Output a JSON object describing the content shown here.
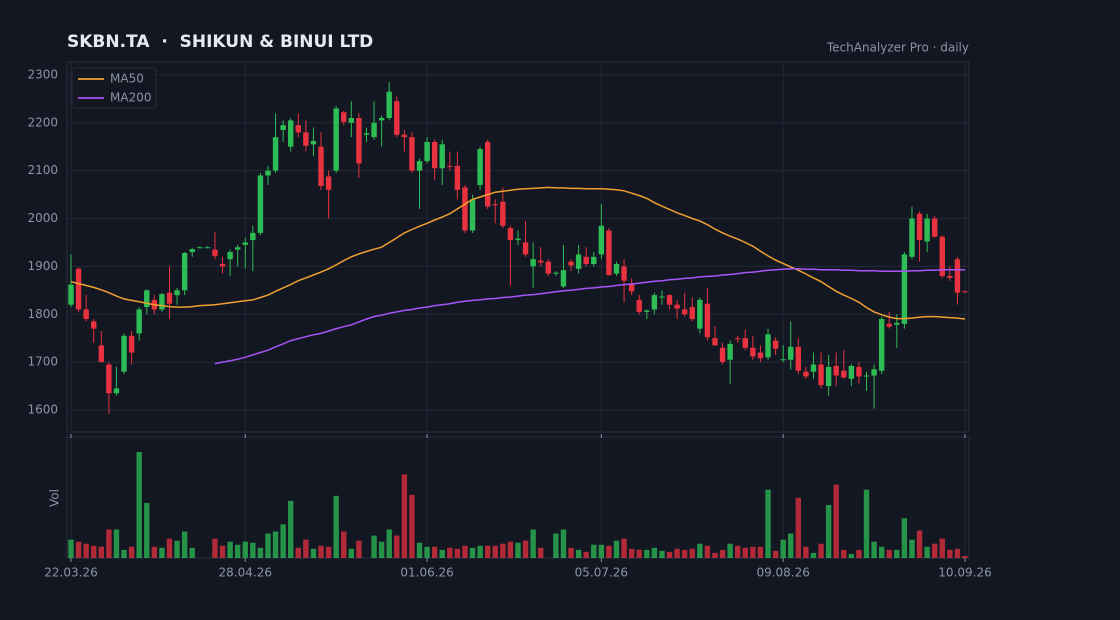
{
  "chart_data": {
    "type": "candlestick",
    "title": "SKBN.TA  ·  SHIKUN & BINUI LTD",
    "subtitle": "TechAnalyzer Pro · daily",
    "volume_label": "Vol",
    "up_color": "#2ebd55",
    "down_color": "#e8323f",
    "legend": "upper left",
    "grid": true,
    "ylim": [
      1554,
      2327
    ],
    "yticks": [
      1600,
      1700,
      1800,
      1900,
      2000,
      2100,
      2200,
      2300
    ],
    "categories": [
      "22.03.26",
      null,
      null,
      null,
      null,
      null,
      null,
      null,
      null,
      null,
      null,
      null,
      null,
      null,
      null,
      null,
      null,
      null,
      null,
      null,
      null,
      null,
      null,
      "28.04.26",
      null,
      null,
      null,
      null,
      null,
      null,
      null,
      null,
      null,
      null,
      null,
      null,
      null,
      null,
      null,
      null,
      null,
      null,
      null,
      null,
      null,
      null,
      null,
      "01.06.26",
      null,
      null,
      null,
      null,
      null,
      null,
      null,
      null,
      null,
      null,
      null,
      null,
      null,
      null,
      null,
      null,
      null,
      null,
      null,
      null,
      null,
      null,
      "05.07.26",
      null,
      null,
      null,
      null,
      null,
      null,
      null,
      null,
      null,
      null,
      null,
      null,
      null,
      null,
      null,
      null,
      null,
      null,
      null,
      null,
      null,
      null,
      null,
      "09.08.26",
      null,
      null,
      null,
      null,
      null,
      null,
      null,
      null,
      null,
      null,
      null,
      null,
      null,
      null,
      null,
      null,
      null,
      null,
      null,
      null,
      null,
      null,
      null,
      "10.09.26"
    ],
    "open": [
      1820,
      1895,
      1810,
      1785,
      1735,
      1695,
      1635,
      1680,
      1755,
      1760,
      1815,
      1830,
      1810,
      1845,
      1840,
      1850,
      1930,
      1940,
      1940,
      1935,
      1905,
      1915,
      1935,
      1945,
      1955,
      1970,
      2090,
      2100,
      2185,
      2150,
      2195,
      2180,
      2155,
      2150,
      2088,
      2100,
      2222,
      2200,
      2210,
      2175,
      2170,
      2205,
      2210,
      2245,
      2175,
      2170,
      2100,
      2120,
      2160,
      2105,
      2110,
      2110,
      2065,
      1975,
      2070,
      2160,
      2030,
      2035,
      1980,
      1955,
      1950,
      1900,
      1912,
      1910,
      1885,
      1858,
      1910,
      1895,
      1920,
      1905,
      1925,
      1975,
      1885,
      1900,
      1865,
      1830,
      1805,
      1810,
      1835,
      1840,
      1820,
      1810,
      1815,
      1770,
      1822,
      1750,
      1730,
      1705,
      1750,
      1750,
      1730,
      1720,
      1710,
      1745,
      1705,
      1705,
      1732,
      1680,
      1680,
      1695,
      1650,
      1692,
      1682,
      1665,
      1690,
      1670,
      1672,
      1682,
      1780,
      1778,
      1780,
      1920,
      2010,
      1952,
      2000,
      1962,
      1880,
      1915,
      1848
    ],
    "high": [
      1925,
      1898,
      1840,
      1790,
      1765,
      1700,
      1690,
      1760,
      1765,
      1815,
      1852,
      1840,
      1845,
      1900,
      1855,
      1930,
      1938,
      1942,
      1942,
      1972,
      1920,
      1935,
      1945,
      1960,
      1985,
      2095,
      2110,
      2220,
      2205,
      2210,
      2220,
      2205,
      2190,
      2180,
      2100,
      2235,
      2225,
      2245,
      2220,
      2190,
      2245,
      2215,
      2285,
      2255,
      2185,
      2180,
      2125,
      2170,
      2165,
      2165,
      2140,
      2140,
      2070,
      2050,
      2150,
      2165,
      2040,
      2065,
      1985,
      1975,
      1995,
      1950,
      1940,
      1915,
      1890,
      1945,
      1915,
      1945,
      1940,
      1930,
      2030,
      1980,
      1910,
      1915,
      1875,
      1840,
      1810,
      1845,
      1850,
      1842,
      1830,
      1845,
      1835,
      1835,
      1855,
      1775,
      1740,
      1745,
      1755,
      1768,
      1755,
      1735,
      1770,
      1752,
      1735,
      1785,
      1750,
      1690,
      1720,
      1720,
      1715,
      1720,
      1725,
      1695,
      1700,
      1680,
      1695,
      1795,
      1805,
      1800,
      1930,
      2025,
      2015,
      2010,
      2005,
      1965,
      1900,
      1920,
      1850
    ],
    "low": [
      1815,
      1805,
      1785,
      1740,
      1700,
      1592,
      1630,
      1675,
      1695,
      1745,
      1800,
      1800,
      1805,
      1790,
      1820,
      1840,
      1920,
      1938,
      1938,
      1915,
      1885,
      1880,
      1900,
      1895,
      1890,
      1965,
      2070,
      2095,
      2160,
      2140,
      2170,
      2140,
      2130,
      2060,
      2000,
      2095,
      2195,
      2170,
      2085,
      2160,
      2165,
      2150,
      2205,
      2170,
      2140,
      2095,
      2020,
      2115,
      2080,
      2070,
      2100,
      2040,
      1970,
      1970,
      2060,
      2020,
      1990,
      1980,
      1860,
      1945,
      1920,
      1855,
      1900,
      1880,
      1880,
      1855,
      1890,
      1885,
      1900,
      1900,
      1915,
      1880,
      1880,
      1825,
      1840,
      1800,
      1790,
      1800,
      1820,
      1810,
      1790,
      1795,
      1785,
      1760,
      1745,
      1735,
      1695,
      1655,
      1740,
      1725,
      1705,
      1700,
      1705,
      1715,
      1700,
      1685,
      1675,
      1665,
      1665,
      1645,
      1630,
      1650,
      1665,
      1650,
      1655,
      1640,
      1603,
      1675,
      1770,
      1730,
      1770,
      1915,
      1910,
      1930,
      1960,
      1875,
      1870,
      1820,
      1845
    ],
    "close": [
      1862,
      1810,
      1790,
      1770,
      1700,
      1635,
      1645,
      1755,
      1720,
      1810,
      1850,
      1810,
      1842,
      1822,
      1850,
      1928,
      1936,
      1940,
      1940,
      1922,
      1900,
      1930,
      1940,
      1950,
      1970,
      2090,
      2100,
      2170,
      2195,
      2205,
      2180,
      2152,
      2162,
      2068,
      2060,
      2230,
      2202,
      2210,
      2115,
      2178,
      2200,
      2210,
      2265,
      2175,
      2170,
      2100,
      2120,
      2160,
      2105,
      2155,
      2108,
      2060,
      1975,
      2040,
      2145,
      2025,
      2028,
      1985,
      1955,
      1958,
      1925,
      1915,
      1908,
      1885,
      1887,
      1892,
      1902,
      1925,
      1905,
      1920,
      1985,
      1882,
      1905,
      1870,
      1848,
      1805,
      1808,
      1840,
      1837,
      1820,
      1812,
      1800,
      1790,
      1830,
      1752,
      1735,
      1700,
      1738,
      1748,
      1730,
      1712,
      1708,
      1758,
      1728,
      1706,
      1732,
      1682,
      1670,
      1695,
      1652,
      1690,
      1672,
      1668,
      1692,
      1670,
      1672,
      1685,
      1790,
      1774,
      1782,
      1925,
      2000,
      1955,
      2000,
      1962,
      1880,
      1876,
      1845,
      1847
    ],
    "volume": [
      18,
      16,
      14,
      12,
      11,
      28,
      28,
      8,
      11,
      104,
      54,
      11,
      10,
      19,
      17,
      26,
      10,
      0,
      0,
      19,
      12,
      16,
      13,
      16,
      15,
      10,
      24,
      26,
      33,
      56,
      10,
      18,
      9,
      12,
      11,
      61,
      26,
      9,
      17,
      0,
      22,
      16,
      28,
      22,
      82,
      62,
      15,
      11,
      11,
      8,
      10,
      9,
      12,
      10,
      12,
      12,
      12,
      14,
      16,
      15,
      17,
      28,
      10,
      0,
      24,
      28,
      10,
      8,
      6,
      13,
      13,
      12,
      17,
      19,
      9,
      8,
      8,
      10,
      7,
      6,
      9,
      8,
      9,
      14,
      12,
      5,
      8,
      14,
      12,
      10,
      11,
      11,
      67,
      7,
      18,
      24,
      59,
      11,
      5,
      14,
      52,
      72,
      8,
      4,
      8,
      67,
      16,
      11,
      8,
      8,
      39,
      18,
      27,
      11,
      14,
      19,
      8,
      9,
      2
    ],
    "series": [
      {
        "name": "MA50",
        "color": "#f0a030",
        "values": [
          1868,
          1864,
          1860,
          1856,
          1851,
          1845,
          1838,
          1832,
          1829,
          1826,
          1823,
          1820,
          1818,
          1816,
          1815,
          1815,
          1816,
          1818,
          1819,
          1820,
          1822,
          1824,
          1826,
          1828,
          1830,
          1835,
          1840,
          1848,
          1855,
          1862,
          1870,
          1876,
          1882,
          1888,
          1895,
          1903,
          1912,
          1920,
          1926,
          1931,
          1936,
          1940,
          1950,
          1960,
          1970,
          1977,
          1984,
          1990,
          1997,
          2003,
          2010,
          2020,
          2030,
          2040,
          2045,
          2050,
          2055,
          2057,
          2059,
          2061,
          2062,
          2063,
          2064,
          2065,
          2064,
          2064,
          2063,
          2063,
          2062,
          2062,
          2062,
          2061,
          2060,
          2058,
          2053,
          2048,
          2042,
          2033,
          2026,
          2019,
          2012,
          2006,
          2000,
          1995,
          1987,
          1978,
          1970,
          1963,
          1957,
          1950,
          1942,
          1932,
          1922,
          1913,
          1906,
          1899,
          1892,
          1884,
          1876,
          1868,
          1858,
          1848,
          1840,
          1833,
          1825,
          1814,
          1805,
          1799,
          1794,
          1791,
          1791,
          1792,
          1794,
          1795,
          1795,
          1794,
          1793,
          1792,
          1790
        ]
      },
      {
        "name": "MA200",
        "color": "#a855f7",
        "values": [
          null,
          null,
          null,
          null,
          null,
          null,
          null,
          null,
          null,
          null,
          null,
          null,
          null,
          null,
          null,
          null,
          null,
          null,
          null,
          1697,
          1700,
          1703,
          1706,
          1710,
          1715,
          1720,
          1725,
          1732,
          1738,
          1745,
          1749,
          1753,
          1757,
          1760,
          1765,
          1770,
          1774,
          1778,
          1784,
          1790,
          1795,
          1798,
          1802,
          1805,
          1808,
          1810,
          1813,
          1815,
          1818,
          1820,
          1822,
          1825,
          1827,
          1829,
          1830,
          1832,
          1833,
          1835,
          1836,
          1838,
          1840,
          1841,
          1843,
          1845,
          1847,
          1849,
          1850,
          1852,
          1854,
          1855,
          1857,
          1858,
          1860,
          1862,
          1863,
          1865,
          1867,
          1869,
          1870,
          1872,
          1873,
          1875,
          1876,
          1878,
          1879,
          1880,
          1882,
          1883,
          1885,
          1887,
          1888,
          1890,
          1892,
          1893,
          1894,
          1895,
          1895,
          1894,
          1894,
          1893,
          1893,
          1893,
          1892,
          1892,
          1891,
          1891,
          1891,
          1890,
          1890,
          1890,
          1890,
          1891,
          1891,
          1892,
          1892,
          1893,
          1893,
          1893,
          1893
        ]
      }
    ]
  }
}
